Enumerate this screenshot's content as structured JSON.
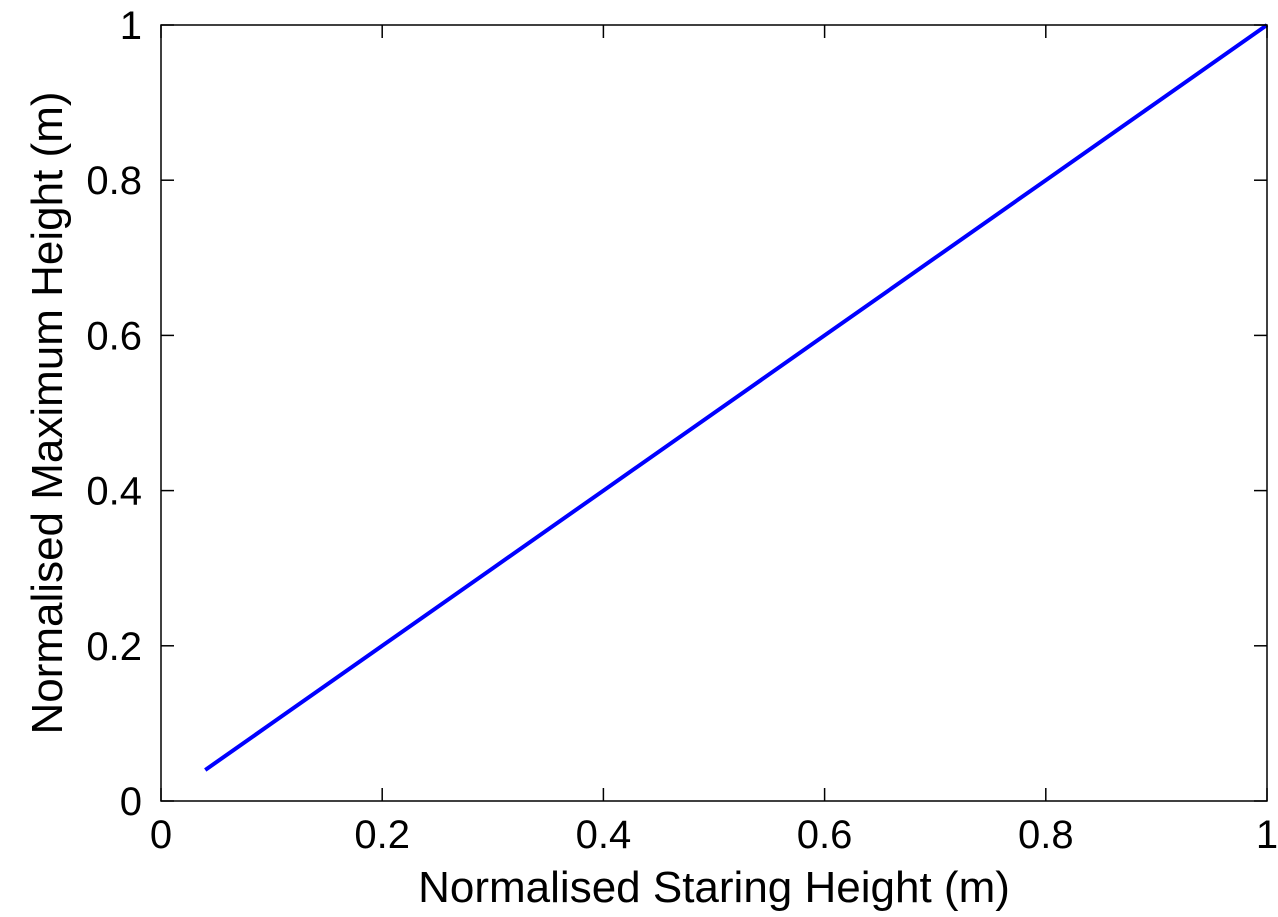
{
  "chart_data": {
    "type": "line",
    "title": "",
    "xlabel": "Normalised Staring Height (m)",
    "ylabel": "Normalised Maximum Height (m)",
    "xlim": [
      0,
      1
    ],
    "ylim": [
      0,
      1
    ],
    "xticks": [
      0,
      0.2,
      0.4,
      0.6,
      0.8,
      1
    ],
    "yticks": [
      0,
      0.2,
      0.4,
      0.6,
      0.8,
      1
    ],
    "xtick_labels": [
      "0",
      "0.2",
      "0.4",
      "0.6",
      "0.8",
      "1"
    ],
    "ytick_labels": [
      "0",
      "0.2",
      "0.4",
      "0.6",
      "0.8",
      "1"
    ],
    "grid": false,
    "series": [
      {
        "color": "#0000ff",
        "x": [
          0.04,
          0.1,
          0.2,
          0.3,
          0.4,
          0.5,
          0.6,
          0.7,
          0.8,
          0.9,
          1.0
        ],
        "y": [
          0.04,
          0.1,
          0.2,
          0.3,
          0.4,
          0.5,
          0.6,
          0.7,
          0.8,
          0.9,
          1.0
        ]
      }
    ]
  }
}
